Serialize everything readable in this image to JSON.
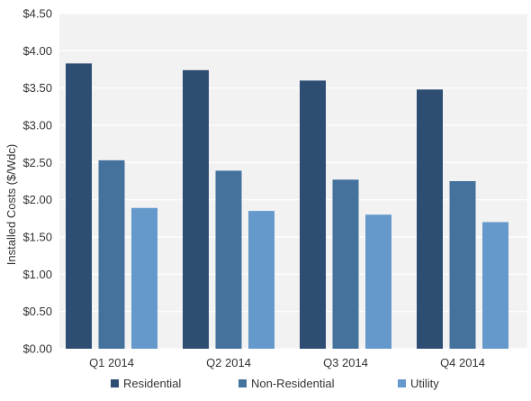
{
  "chart_data": {
    "type": "bar",
    "title": "",
    "xlabel": "",
    "ylabel": "Installed Costs ($/Wdc)",
    "categories": [
      "Q1 2014",
      "Q2 2014",
      "Q3 2014",
      "Q4 2014"
    ],
    "series": [
      {
        "name": "Residential",
        "color": "#2e4d73",
        "values": [
          3.83,
          3.74,
          3.6,
          3.48
        ]
      },
      {
        "name": "Non-Residential",
        "color": "#44729c",
        "values": [
          2.53,
          2.39,
          2.27,
          2.25
        ]
      },
      {
        "name": "Utility",
        "color": "#6599cb",
        "values": [
          1.89,
          1.85,
          1.8,
          1.7
        ]
      }
    ],
    "ylim": [
      0,
      4.5
    ],
    "yticks": [
      "$0.00",
      "$0.50",
      "$1.00",
      "$1.50",
      "$2.00",
      "$2.50",
      "$3.00",
      "$3.50",
      "$4.00",
      "$4.50"
    ],
    "grid": true,
    "legend_position": "bottom"
  }
}
